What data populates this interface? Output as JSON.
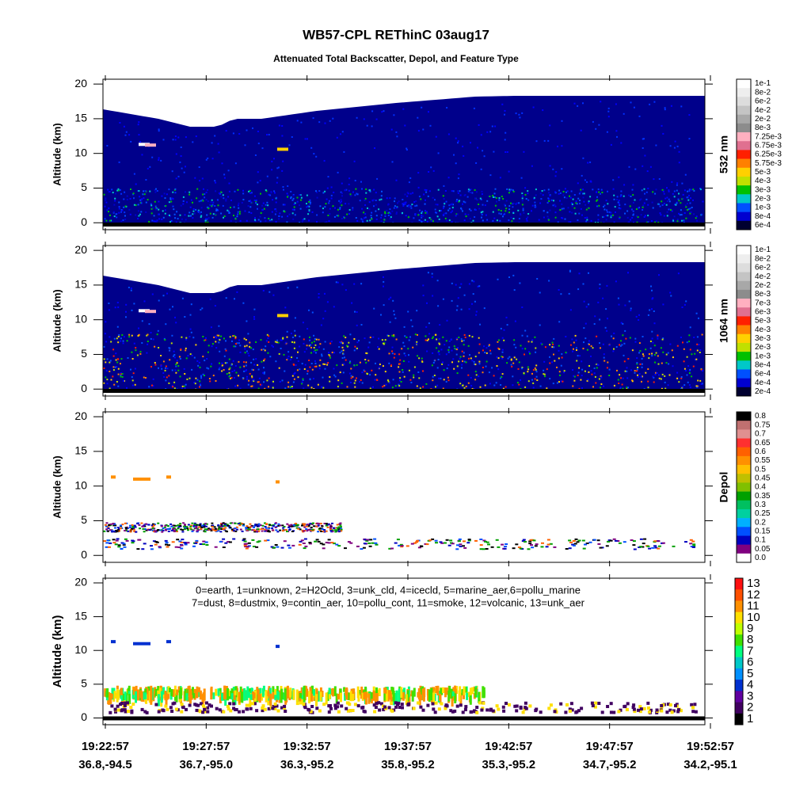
{
  "chart_data": [
    {
      "type": "curtain",
      "title": "WB57-CPL REThinC 03aug17",
      "subtitle": "Attenuated Total Backscatter, Depol, and Feature Type",
      "ylabel": "Altitude (km)",
      "ylim": [
        -1,
        20.7
      ],
      "yticks": [
        0,
        5,
        10,
        15,
        20
      ],
      "colorbar_label": "532 nm",
      "colorbar_labels": [
        "1e-1",
        "8e-2",
        "6e-2",
        "4e-2",
        "2e-2",
        "8e-3",
        "7.25e-3",
        "6.75e-3",
        "6.25e-3",
        "5.75e-3",
        "5e-3",
        "4e-3",
        "3e-3",
        "2e-3",
        "1e-3",
        "8e-4",
        "6e-4"
      ],
      "colorbar_colors": [
        "#ffffff",
        "#eeeeee",
        "#dddddd",
        "#c4c4c4",
        "#a8a8a8",
        "#8c8c8c",
        "#ffb0c0",
        "#e07090",
        "#ff2000",
        "#ff8000",
        "#ffd000",
        "#c0e000",
        "#00c000",
        "#00c8c8",
        "#0050ff",
        "#0000d0",
        "#000030"
      ]
    },
    {
      "type": "curtain",
      "ylabel": "Altitude (km)",
      "ylim": [
        -1,
        20.7
      ],
      "yticks": [
        0,
        5,
        10,
        15,
        20
      ],
      "colorbar_label": "1064 nm",
      "colorbar_labels": [
        "1e-1",
        "8e-2",
        "6e-2",
        "4e-2",
        "2e-2",
        "8e-3",
        "7e-3",
        "6e-3",
        "5e-3",
        "4e-3",
        "3e-3",
        "2e-3",
        "1e-3",
        "8e-4",
        "6e-4",
        "4e-4",
        "2e-4"
      ],
      "colorbar_colors": [
        "#ffffff",
        "#eeeeee",
        "#dddddd",
        "#c4c4c4",
        "#a8a8a8",
        "#8c8c8c",
        "#ffb0c0",
        "#e07090",
        "#ff2000",
        "#ff8000",
        "#ffd000",
        "#c0e000",
        "#00c000",
        "#00c8c8",
        "#0050ff",
        "#0000d0",
        "#000030"
      ]
    },
    {
      "type": "depol",
      "ylabel": "Altitude (km)",
      "ylim": [
        -1,
        20.7
      ],
      "yticks": [
        0,
        5,
        10,
        15,
        20
      ],
      "colorbar_label": "Depol",
      "colorbar_labels": [
        "0.8",
        "0.75",
        "0.7",
        "0.65",
        "0.6",
        "0.55",
        "0.5",
        "0.45",
        "0.4",
        "0.35",
        "0.3",
        "0.25",
        "0.2",
        "0.15",
        "0.1",
        "0.05",
        "0.0"
      ],
      "colorbar_colors": [
        "#000000",
        "#c07070",
        "#e09090",
        "#ff3030",
        "#ff6000",
        "#ff9000",
        "#ffc000",
        "#c0c000",
        "#80c000",
        "#00a000",
        "#00c060",
        "#00d0a0",
        "#00b0ff",
        "#0050ff",
        "#0000c0",
        "#800080",
        "#ffffff"
      ]
    },
    {
      "type": "feature",
      "ylabel": "Altitude (km)",
      "ylim": [
        -1,
        20.7
      ],
      "yticks": [
        0,
        5,
        10,
        15,
        20
      ],
      "annotation": [
        "0=earth, 1=unknown, 2=H2Ocld, 3=unk_cld, 4=icecld, 5=marine_aer,6=pollu_marine",
        "7=dust, 8=dustmix, 9=contin_aer, 10=pollu_cont, 11=smoke, 12=volcanic, 13=unk_aer"
      ],
      "colorbar_labels": [
        13,
        12,
        11,
        10,
        9,
        8,
        7,
        6,
        5,
        4,
        3,
        2,
        1
      ],
      "colorbar_colors": [
        "#ff1010",
        "#ff5000",
        "#ff9000",
        "#ffe000",
        "#c0ff00",
        "#40e000",
        "#00ff80",
        "#00c8c8",
        "#0090ff",
        "#0030d0",
        "#6000a0",
        "#400060",
        "#000000"
      ],
      "x_labels": [
        "19:22:57",
        "19:27:57",
        "19:32:57",
        "19:37:57",
        "19:42:57",
        "19:47:57",
        "19:52:57"
      ],
      "x_sublabels": [
        "36.8,-94.5",
        "36.7,-95.0",
        "36.3,-95.2",
        "35.8,-95.2",
        "35.3,-95.2",
        "34.7,-95.2",
        "34.2,-95.1"
      ]
    }
  ]
}
